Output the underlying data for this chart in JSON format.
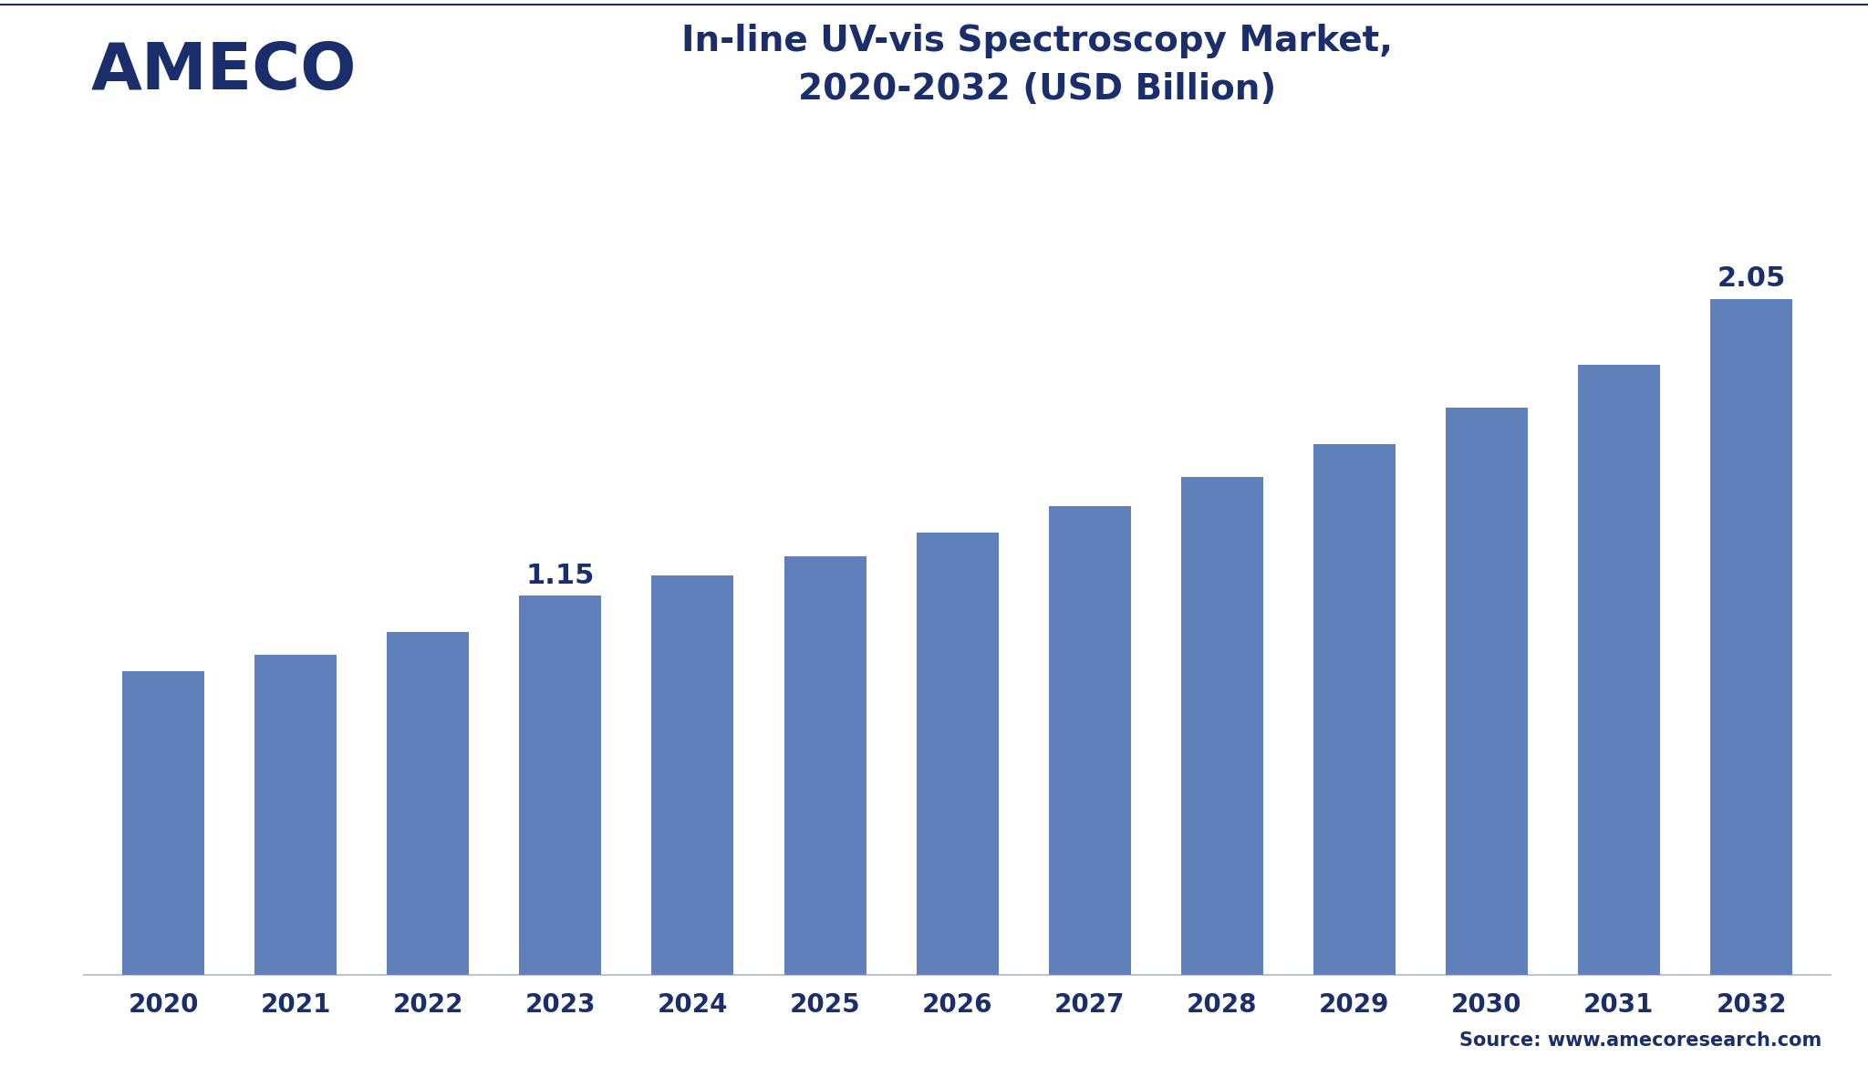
{
  "title_line1": "In-line UV-vis Spectroscopy Market,",
  "title_line2": "2020-2032 (USD Billion)",
  "title_color": "#1a2e6c",
  "title_fontsize": 28,
  "categories": [
    "2020",
    "2021",
    "2022",
    "2023",
    "2024",
    "2025",
    "2026",
    "2027",
    "2028",
    "2029",
    "2030",
    "2031",
    "2032"
  ],
  "values": [
    0.92,
    0.97,
    1.04,
    1.15,
    1.21,
    1.27,
    1.34,
    1.42,
    1.51,
    1.61,
    1.72,
    1.85,
    2.05
  ],
  "bar_color": "#6080bb",
  "bar_labeled": [
    false,
    false,
    false,
    true,
    false,
    false,
    false,
    false,
    false,
    false,
    false,
    false,
    true
  ],
  "bar_labels": [
    "",
    "",
    "",
    "1.15",
    "",
    "",
    "",
    "",
    "",
    "",
    "",
    "",
    "2.05"
  ],
  "label_fontsize": 22,
  "label_color": "#1a2e6c",
  "tick_color": "#1a2e6c",
  "tick_fontsize": 20,
  "ylim": [
    0,
    2.45
  ],
  "source_text": "Source: www.amecoresearch.com",
  "source_fontsize": 15,
  "source_color": "#1a2e6c",
  "bg_color": "#ffffff",
  "logo_text": "AMECO",
  "logo_color": "#1a2e6c",
  "logo_fontsize": 52,
  "separator_color": "#b0b8c8",
  "axis_line_color": "#b0b8c8",
  "top_border_color": "#1a2e6c"
}
